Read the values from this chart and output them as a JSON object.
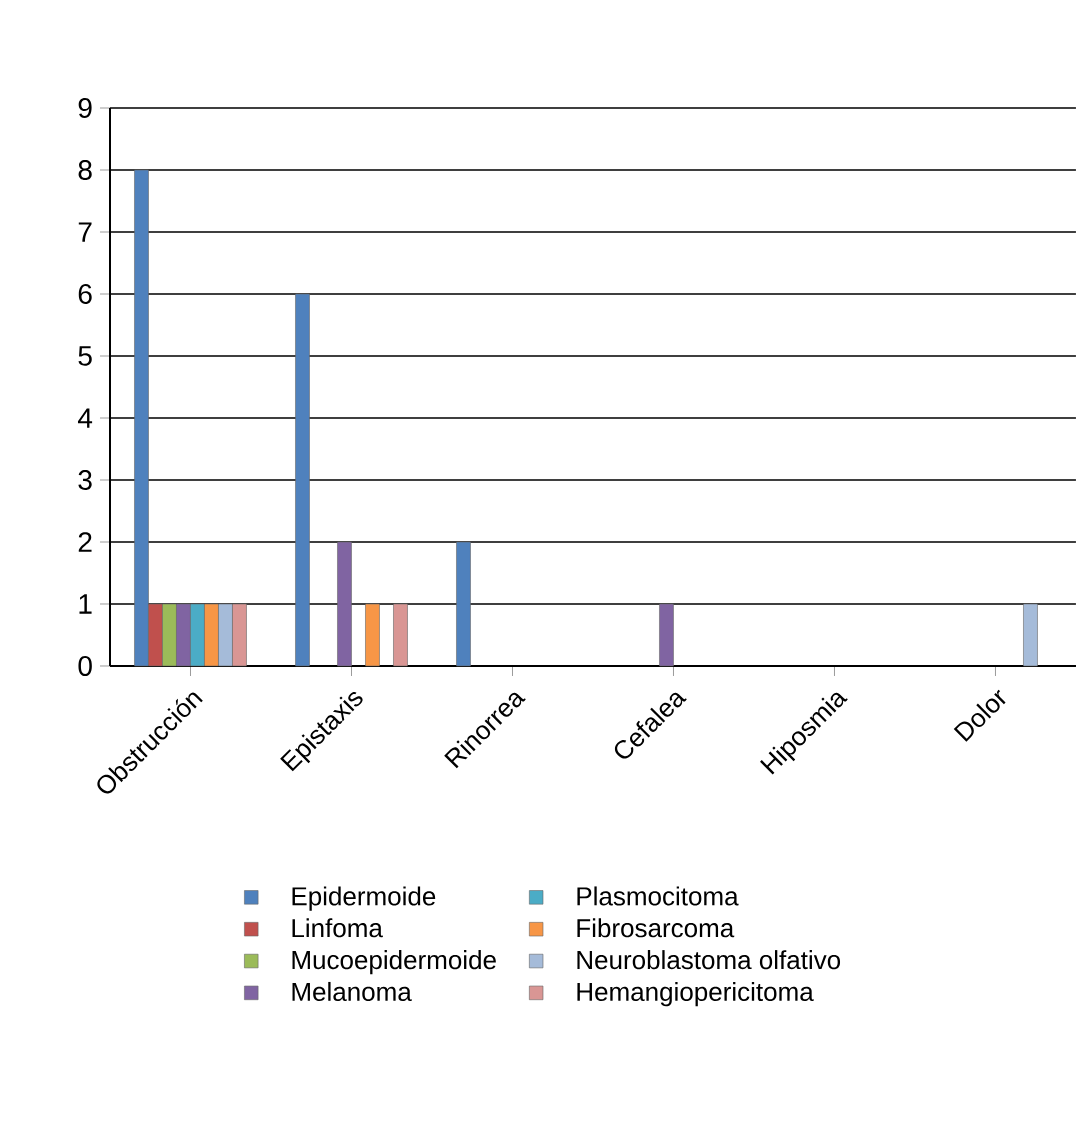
{
  "chart_data": {
    "type": "bar",
    "categories": [
      "Obstrucción",
      "Epistaxis",
      "Rinorrea",
      "Cefalea",
      "Hiposmia",
      "Dolor"
    ],
    "series": [
      {
        "name": "Epidermoide",
        "color": "#4f81bd",
        "values": [
          8,
          6,
          2,
          null,
          null,
          null
        ]
      },
      {
        "name": "Linfoma",
        "color": "#c0504d",
        "values": [
          1,
          null,
          null,
          null,
          null,
          null
        ]
      },
      {
        "name": "Mucoepidermoide",
        "color": "#9bbb59",
        "values": [
          1,
          null,
          null,
          null,
          null,
          null
        ]
      },
      {
        "name": "Melanoma",
        "color": "#8064a2",
        "values": [
          1,
          2,
          null,
          1,
          null,
          null
        ]
      },
      {
        "name": "Plasmocitoma",
        "color": "#4bacc6",
        "values": [
          1,
          null,
          null,
          null,
          null,
          null
        ]
      },
      {
        "name": "Fibrosarcoma",
        "color": "#f79646",
        "values": [
          1,
          1,
          null,
          null,
          null,
          null
        ]
      },
      {
        "name": "Neuroblastoma olfativo",
        "color": "#a5bbd9",
        "values": [
          1,
          null,
          null,
          null,
          null,
          1
        ]
      },
      {
        "name": "Hemangiopericitoma",
        "color": "#d99694",
        "values": [
          1,
          1,
          null,
          null,
          null,
          null
        ]
      }
    ],
    "ylim": [
      0,
      9
    ],
    "yticks": [
      0,
      1,
      2,
      3,
      4,
      5,
      6,
      7,
      8,
      9
    ],
    "grid": "y",
    "legend": "bottom"
  }
}
